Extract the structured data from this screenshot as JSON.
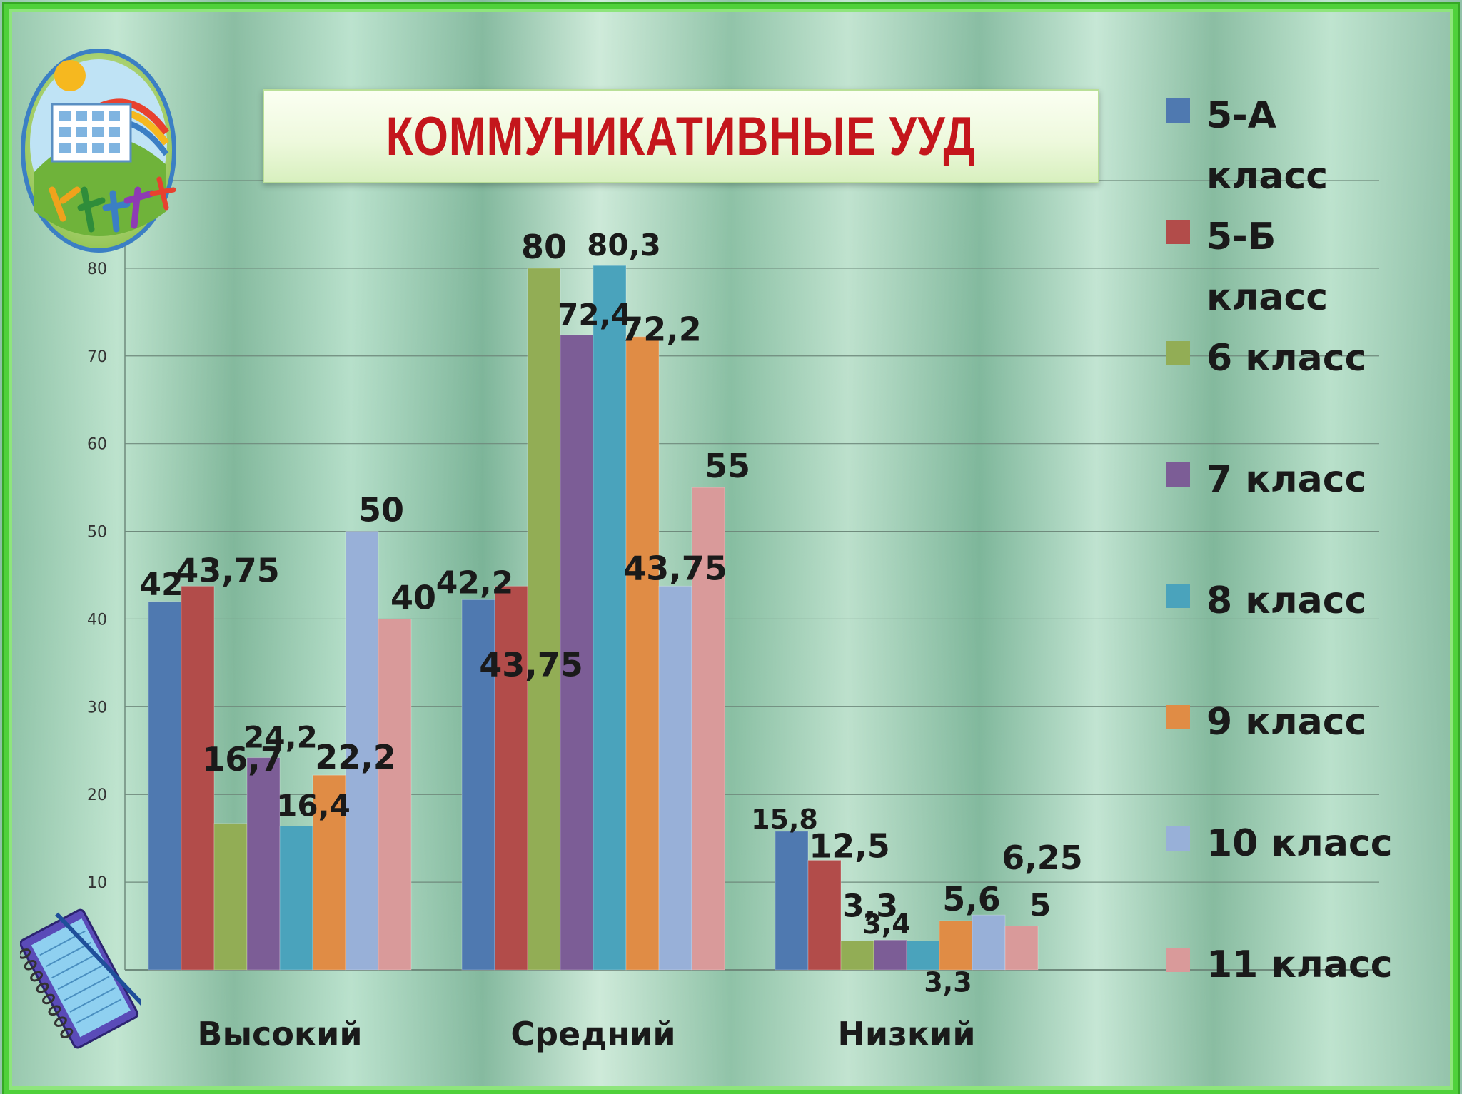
{
  "title": "КОММУНИКАТИВНЫЕ УУД",
  "colors": {
    "title": "#c4161c",
    "series": [
      "#4f79b0",
      "#b24c4a",
      "#92ad55",
      "#7c5d96",
      "#4aa3bc",
      "#e08c45",
      "#98b0d8",
      "#d99a9a"
    ]
  },
  "icons": [
    "school-logo-icon",
    "notebook-icon"
  ],
  "chart_data": {
    "type": "bar",
    "title": "КОММУНИКАТИВНЫЕ УУД",
    "categories": [
      "Высокий",
      "Средний",
      "Низкий"
    ],
    "series": [
      {
        "name": "5-А класс",
        "values": [
          42,
          42.2,
          15.8
        ]
      },
      {
        "name": "5-Б класс",
        "values": [
          43.75,
          43.75,
          12.5
        ]
      },
      {
        "name": "6 класс",
        "values": [
          16.7,
          80,
          3.3
        ]
      },
      {
        "name": "7 класс",
        "values": [
          24.2,
          72.4,
          3.4
        ]
      },
      {
        "name": "8 класс",
        "values": [
          16.4,
          80.3,
          3.3
        ]
      },
      {
        "name": "9 класс",
        "values": [
          22.2,
          72.2,
          5.6
        ]
      },
      {
        "name": "10 класс",
        "values": [
          50,
          43.75,
          6.25
        ]
      },
      {
        "name": "11 класс",
        "values": [
          40,
          55,
          5
        ]
      }
    ],
    "data_labels": [
      [
        "42",
        "42,2",
        "15,8"
      ],
      [
        "43,75",
        "43,75",
        "12,5"
      ],
      [
        "16,7",
        "80",
        "3,3"
      ],
      [
        "24,2",
        "72,4",
        "3,4"
      ],
      [
        "16,4",
        "80,3",
        "3,3"
      ],
      [
        "22,2",
        "72,2",
        "5,6"
      ],
      [
        "50",
        "43,75",
        "6,25"
      ],
      [
        "40",
        "55",
        "5"
      ]
    ],
    "y_ticks": [
      "0",
      "10",
      "20",
      "30",
      "40",
      "50",
      "60",
      "70",
      "80",
      "90"
    ],
    "ylim": [
      0,
      90
    ],
    "grid": true,
    "legend": "right",
    "xlabel": "",
    "ylabel": ""
  }
}
